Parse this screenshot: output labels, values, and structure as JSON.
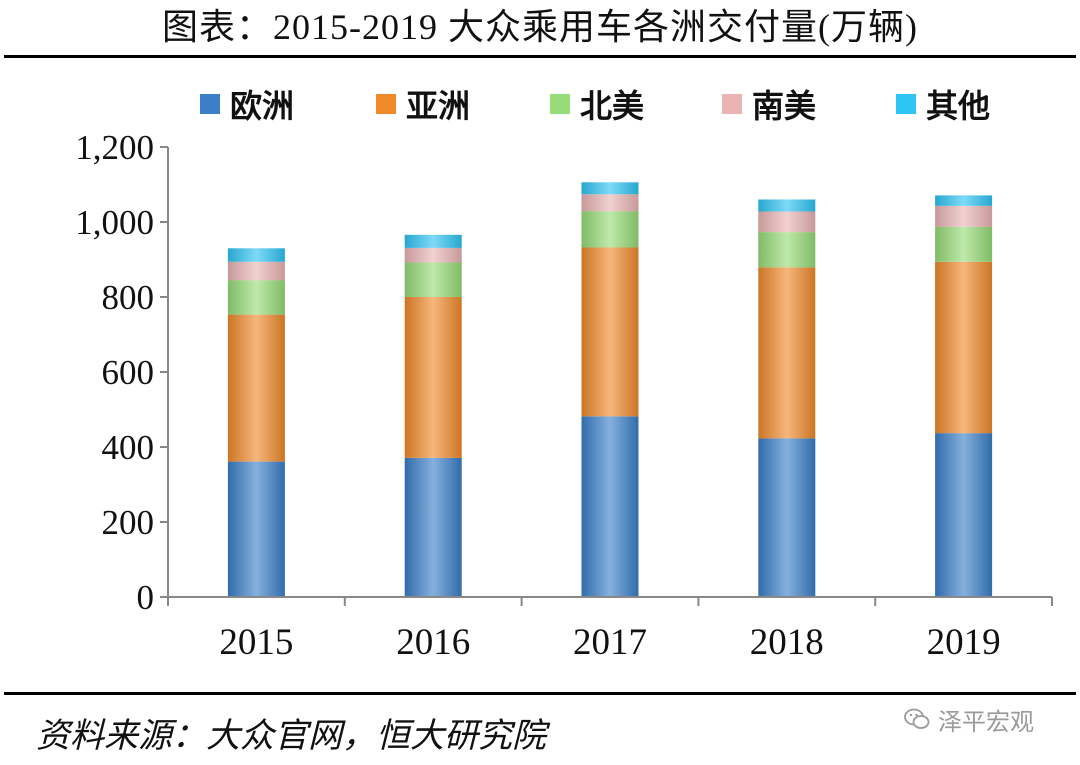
{
  "title": "图表：2015-2019 大众乘用车各洲交付量(万辆)",
  "source": "资料来源：大众官网，恒大研究院",
  "watermark": "泽平宏观",
  "watermark_icon": "wechat-icon",
  "colors": {
    "europe": "#3a7fc8",
    "asia": "#f08a2c",
    "north_america": "#97dc78",
    "south_america": "#eab4b4",
    "other": "#2ec4f4"
  },
  "chart_data": {
    "type": "bar",
    "stacked": true,
    "categories": [
      "2015",
      "2016",
      "2017",
      "2018",
      "2019"
    ],
    "series": [
      {
        "name": "欧洲",
        "key": "europe",
        "values": [
          361,
          371,
          482,
          423,
          437
        ]
      },
      {
        "name": "亚洲",
        "key": "asia",
        "values": [
          392,
          429,
          450,
          456,
          457
        ]
      },
      {
        "name": "北美",
        "key": "north_america",
        "values": [
          92,
          92,
          97,
          94,
          93
        ]
      },
      {
        "name": "南美",
        "key": "south_america",
        "values": [
          49,
          39,
          45,
          55,
          56
        ]
      },
      {
        "name": "其他",
        "key": "other",
        "values": [
          36,
          35,
          32,
          32,
          28
        ]
      }
    ],
    "ylim": [
      0,
      1200
    ],
    "yticks": [
      0,
      200,
      400,
      600,
      800,
      1000,
      1200
    ],
    "ytick_labels": [
      "0",
      "200",
      "400",
      "600",
      "800",
      "1,000",
      "1,200"
    ],
    "legend_position": "top",
    "grid": false,
    "xlabel": "",
    "ylabel": ""
  }
}
